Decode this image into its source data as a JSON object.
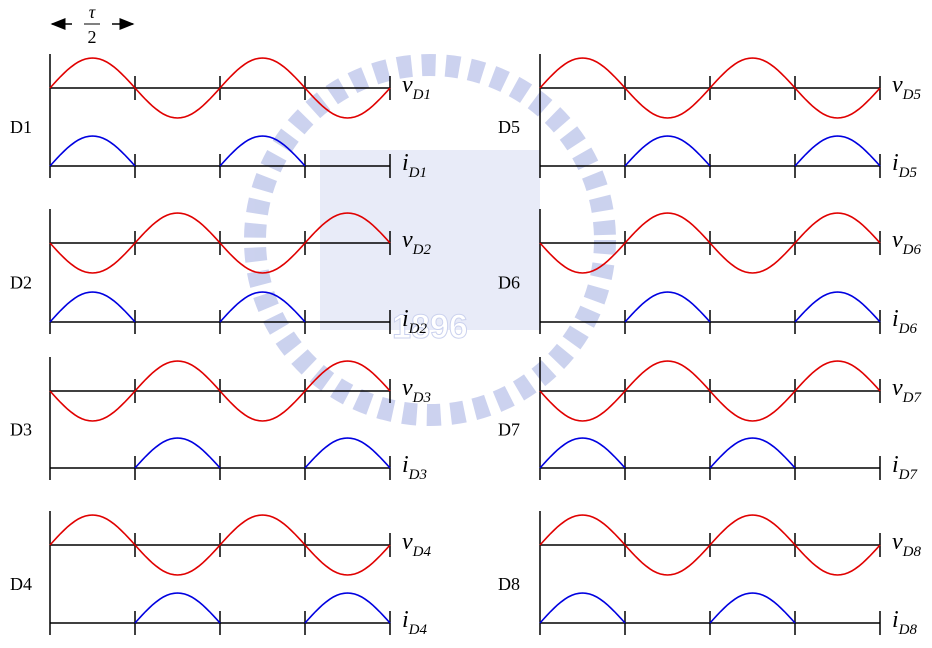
{
  "header": {
    "tau": "τ",
    "two": "2"
  },
  "watermark": {
    "text": "1896"
  },
  "panels": [
    {
      "label": "D1",
      "v": {
        "symbol": "v",
        "subscript": "D1"
      },
      "i": {
        "symbol": "i",
        "subscript": "D1"
      }
    },
    {
      "label": "D2",
      "v": {
        "symbol": "v",
        "subscript": "D2"
      },
      "i": {
        "symbol": "i",
        "subscript": "D2"
      }
    },
    {
      "label": "D3",
      "v": {
        "symbol": "v",
        "subscript": "D3"
      },
      "i": {
        "symbol": "i",
        "subscript": "D3"
      }
    },
    {
      "label": "D4",
      "v": {
        "symbol": "v",
        "subscript": "D4"
      },
      "i": {
        "symbol": "i",
        "subscript": "D4"
      }
    },
    {
      "label": "D5",
      "v": {
        "symbol": "v",
        "subscript": "D5"
      },
      "i": {
        "symbol": "i",
        "subscript": "D5"
      }
    },
    {
      "label": "D6",
      "v": {
        "symbol": "v",
        "subscript": "D6"
      },
      "i": {
        "symbol": "i",
        "subscript": "D6"
      }
    },
    {
      "label": "D7",
      "v": {
        "symbol": "v",
        "subscript": "D7"
      },
      "i": {
        "symbol": "i",
        "subscript": "D7"
      }
    },
    {
      "label": "D8",
      "v": {
        "symbol": "v",
        "subscript": "D8"
      },
      "i": {
        "symbol": "i",
        "subscript": "D8"
      }
    }
  ]
}
